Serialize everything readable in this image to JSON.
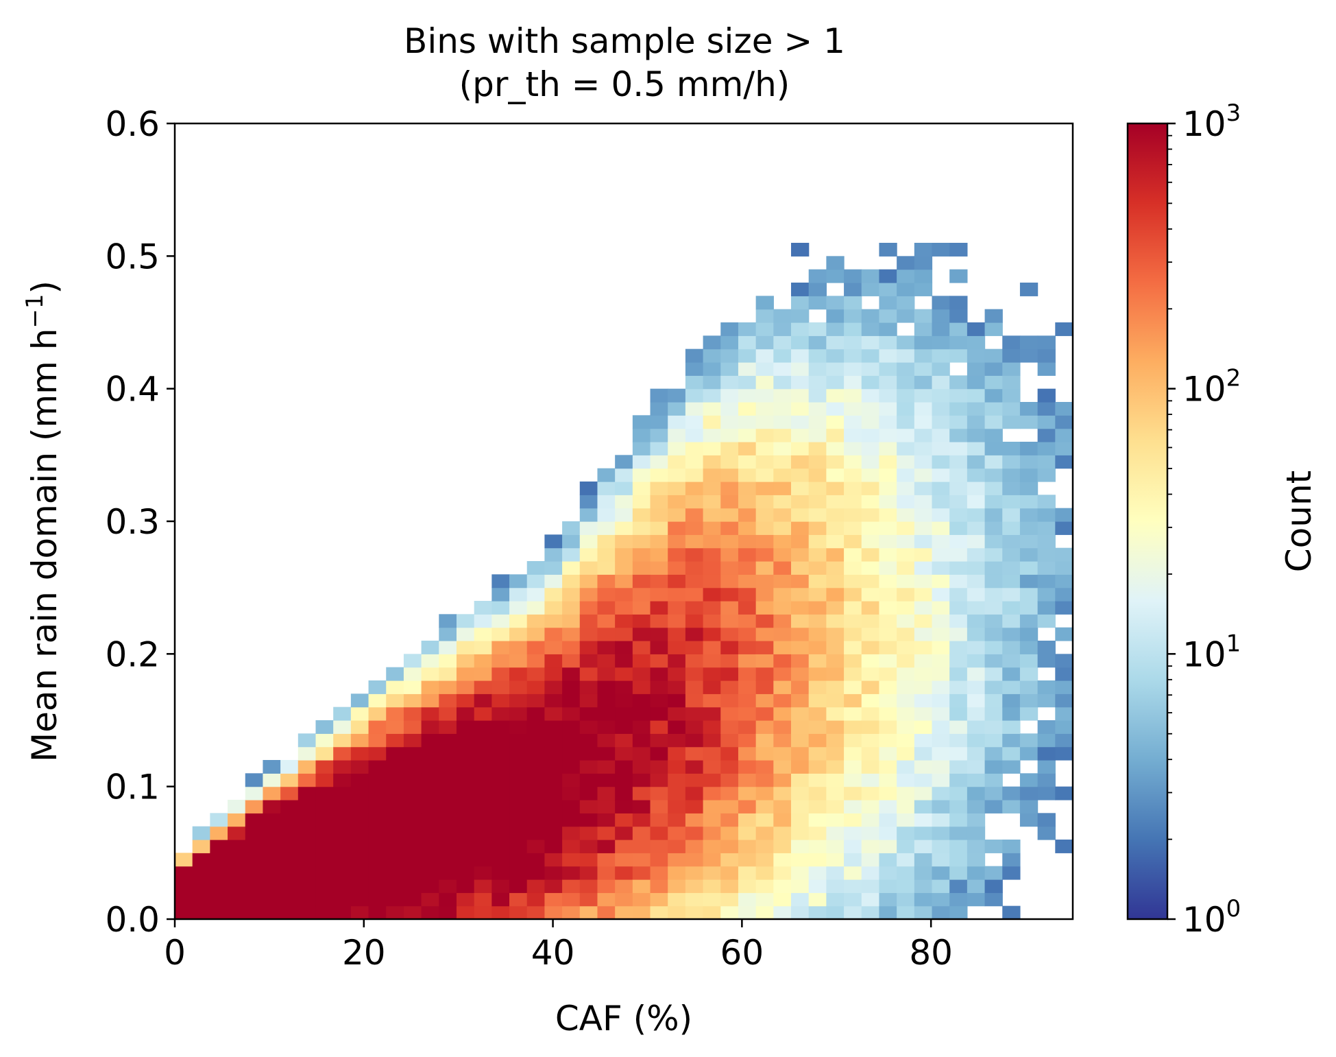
{
  "chart_data": {
    "type": "heatmap",
    "title_line1": "Bins with sample size > 1",
    "title_line2": "(pr_th = 0.5 mm/h)",
    "xlabel": "CAF (%)",
    "ylabel_main": "Mean rain domain (mm h",
    "ylabel_sup": "−1",
    "ylabel_close": ")",
    "xlim": [
      0,
      95
    ],
    "ylim": [
      0,
      0.6
    ],
    "x_ticks": [
      0,
      20,
      40,
      60,
      80
    ],
    "y_ticks": [
      "0.0",
      "0.1",
      "0.2",
      "0.3",
      "0.4",
      "0.5",
      "0.6"
    ],
    "x_bins": 51,
    "y_bins": 60,
    "colorbar": {
      "label": "Count",
      "scale": "log",
      "range": [
        1,
        1000
      ],
      "colormap": "RdYlBu_r",
      "tick_bases": [
        "10",
        "10",
        "10",
        "10"
      ],
      "tick_exponents": [
        "0",
        "1",
        "2",
        "3"
      ]
    },
    "density_description": "Counts are densest (~1000) along a ridge from CAF 0% at low rain rising toward CAF ~40% near 0.1 mm/h, then spreading to CAF ~90% and rain up to ~0.55 mm/h with counts of 2–20 at the fringe."
  }
}
